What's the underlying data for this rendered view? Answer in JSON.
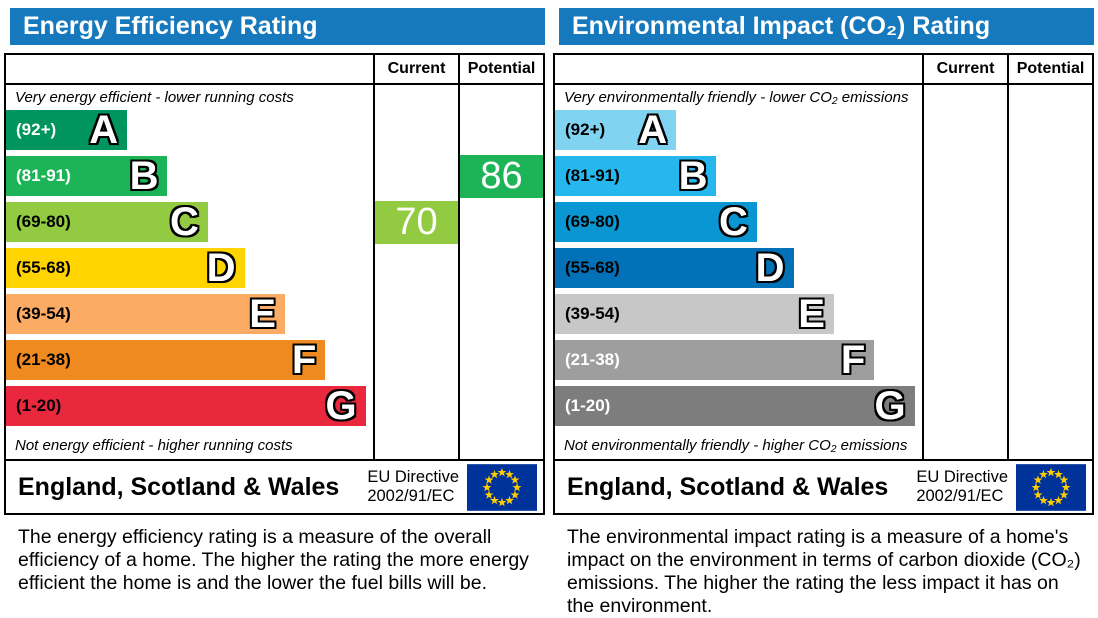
{
  "colors": {
    "header_bg": "#1679bd",
    "border": "#000000",
    "eu_flag_bg": "#003399",
    "eu_star": "#ffcc00",
    "current_marker": "#92ca41",
    "potential_marker": "#1db458"
  },
  "columns": {
    "current": "Current",
    "potential": "Potential"
  },
  "footer": {
    "region": "England, Scotland & Wales",
    "directive_line1": "EU Directive",
    "directive_line2": "2002/91/EC"
  },
  "panels": [
    {
      "id": "energy-efficiency",
      "title": "Energy Efficiency Rating",
      "top_caption": "Very energy efficient - lower running costs",
      "bottom_caption": "Not energy efficient - higher running costs",
      "bands": [
        {
          "letter": "A",
          "range": "(92+)",
          "color": "#00955f",
          "label_color": "#ffffff",
          "width_pct": 33
        },
        {
          "letter": "B",
          "range": "(81-91)",
          "color": "#1db458",
          "label_color": "#ffffff",
          "width_pct": 44
        },
        {
          "letter": "C",
          "range": "(69-80)",
          "color": "#92ca41",
          "label_color": "#000000",
          "width_pct": 55
        },
        {
          "letter": "D",
          "range": "(55-68)",
          "color": "#ffd400",
          "label_color": "#000000",
          "width_pct": 65
        },
        {
          "letter": "E",
          "range": "(39-54)",
          "color": "#fbab63",
          "label_color": "#000000",
          "width_pct": 76
        },
        {
          "letter": "F",
          "range": "(21-38)",
          "color": "#ef8a21",
          "label_color": "#000000",
          "width_pct": 87
        },
        {
          "letter": "G",
          "range": "(1-20)",
          "color": "#e9283e",
          "label_color": "#000000",
          "width_pct": 98
        }
      ],
      "current": {
        "value": "70",
        "band_row": 2,
        "color": "#92ca41"
      },
      "potential": {
        "value": "86",
        "band_row": 1,
        "color": "#1db458"
      },
      "description": "The energy efficiency rating is a measure of the overall efficiency of a home. The higher the rating the more energy efficient the home is and the lower the fuel bills will be."
    },
    {
      "id": "environmental-impact",
      "title": "Environmental Impact (CO₂) Rating",
      "top_caption": "Very environmentally friendly - lower CO₂ emissions",
      "bottom_caption": "Not environmentally friendly - higher CO₂ emissions",
      "bands": [
        {
          "letter": "A",
          "range": "(92+)",
          "color": "#80d3f1",
          "label_color": "#000000",
          "width_pct": 33
        },
        {
          "letter": "B",
          "range": "(81-91)",
          "color": "#26b7ef",
          "label_color": "#000000",
          "width_pct": 44
        },
        {
          "letter": "C",
          "range": "(69-80)",
          "color": "#0a96d2",
          "label_color": "#000000",
          "width_pct": 55
        },
        {
          "letter": "D",
          "range": "(55-68)",
          "color": "#0271b8",
          "label_color": "#000000",
          "width_pct": 65
        },
        {
          "letter": "E",
          "range": "(39-54)",
          "color": "#c7c7c7",
          "label_color": "#000000",
          "width_pct": 76
        },
        {
          "letter": "F",
          "range": "(21-38)",
          "color": "#9e9e9e",
          "label_color": "#ffffff",
          "width_pct": 87
        },
        {
          "letter": "G",
          "range": "(1-20)",
          "color": "#7d7d7d",
          "label_color": "#ffffff",
          "width_pct": 98
        }
      ],
      "current": null,
      "potential": null,
      "description": "The environmental impact rating is a measure of a home's impact on the environment in terms of carbon dioxide (CO₂) emissions. The higher the rating the less impact it has on the environment."
    }
  ],
  "chart_data": [
    {
      "type": "bar",
      "title": "Energy Efficiency Rating",
      "categories": [
        "A (92+)",
        "B (81-91)",
        "C (69-80)",
        "D (55-68)",
        "E (39-54)",
        "F (21-38)",
        "G (1-20)"
      ],
      "band_widths_pct": [
        33,
        44,
        55,
        65,
        76,
        87,
        98
      ],
      "current_value": 70,
      "current_band": "C",
      "potential_value": 86,
      "potential_band": "B",
      "region_label": "England, Scotland & Wales",
      "directive": "EU Directive 2002/91/EC"
    },
    {
      "type": "bar",
      "title": "Environmental Impact (CO₂) Rating",
      "categories": [
        "A (92+)",
        "B (81-91)",
        "C (69-80)",
        "D (55-68)",
        "E (39-54)",
        "F (21-38)",
        "G (1-20)"
      ],
      "band_widths_pct": [
        33,
        44,
        55,
        65,
        76,
        87,
        98
      ],
      "current_value": null,
      "potential_value": null,
      "region_label": "England, Scotland & Wales",
      "directive": "EU Directive 2002/91/EC"
    }
  ]
}
